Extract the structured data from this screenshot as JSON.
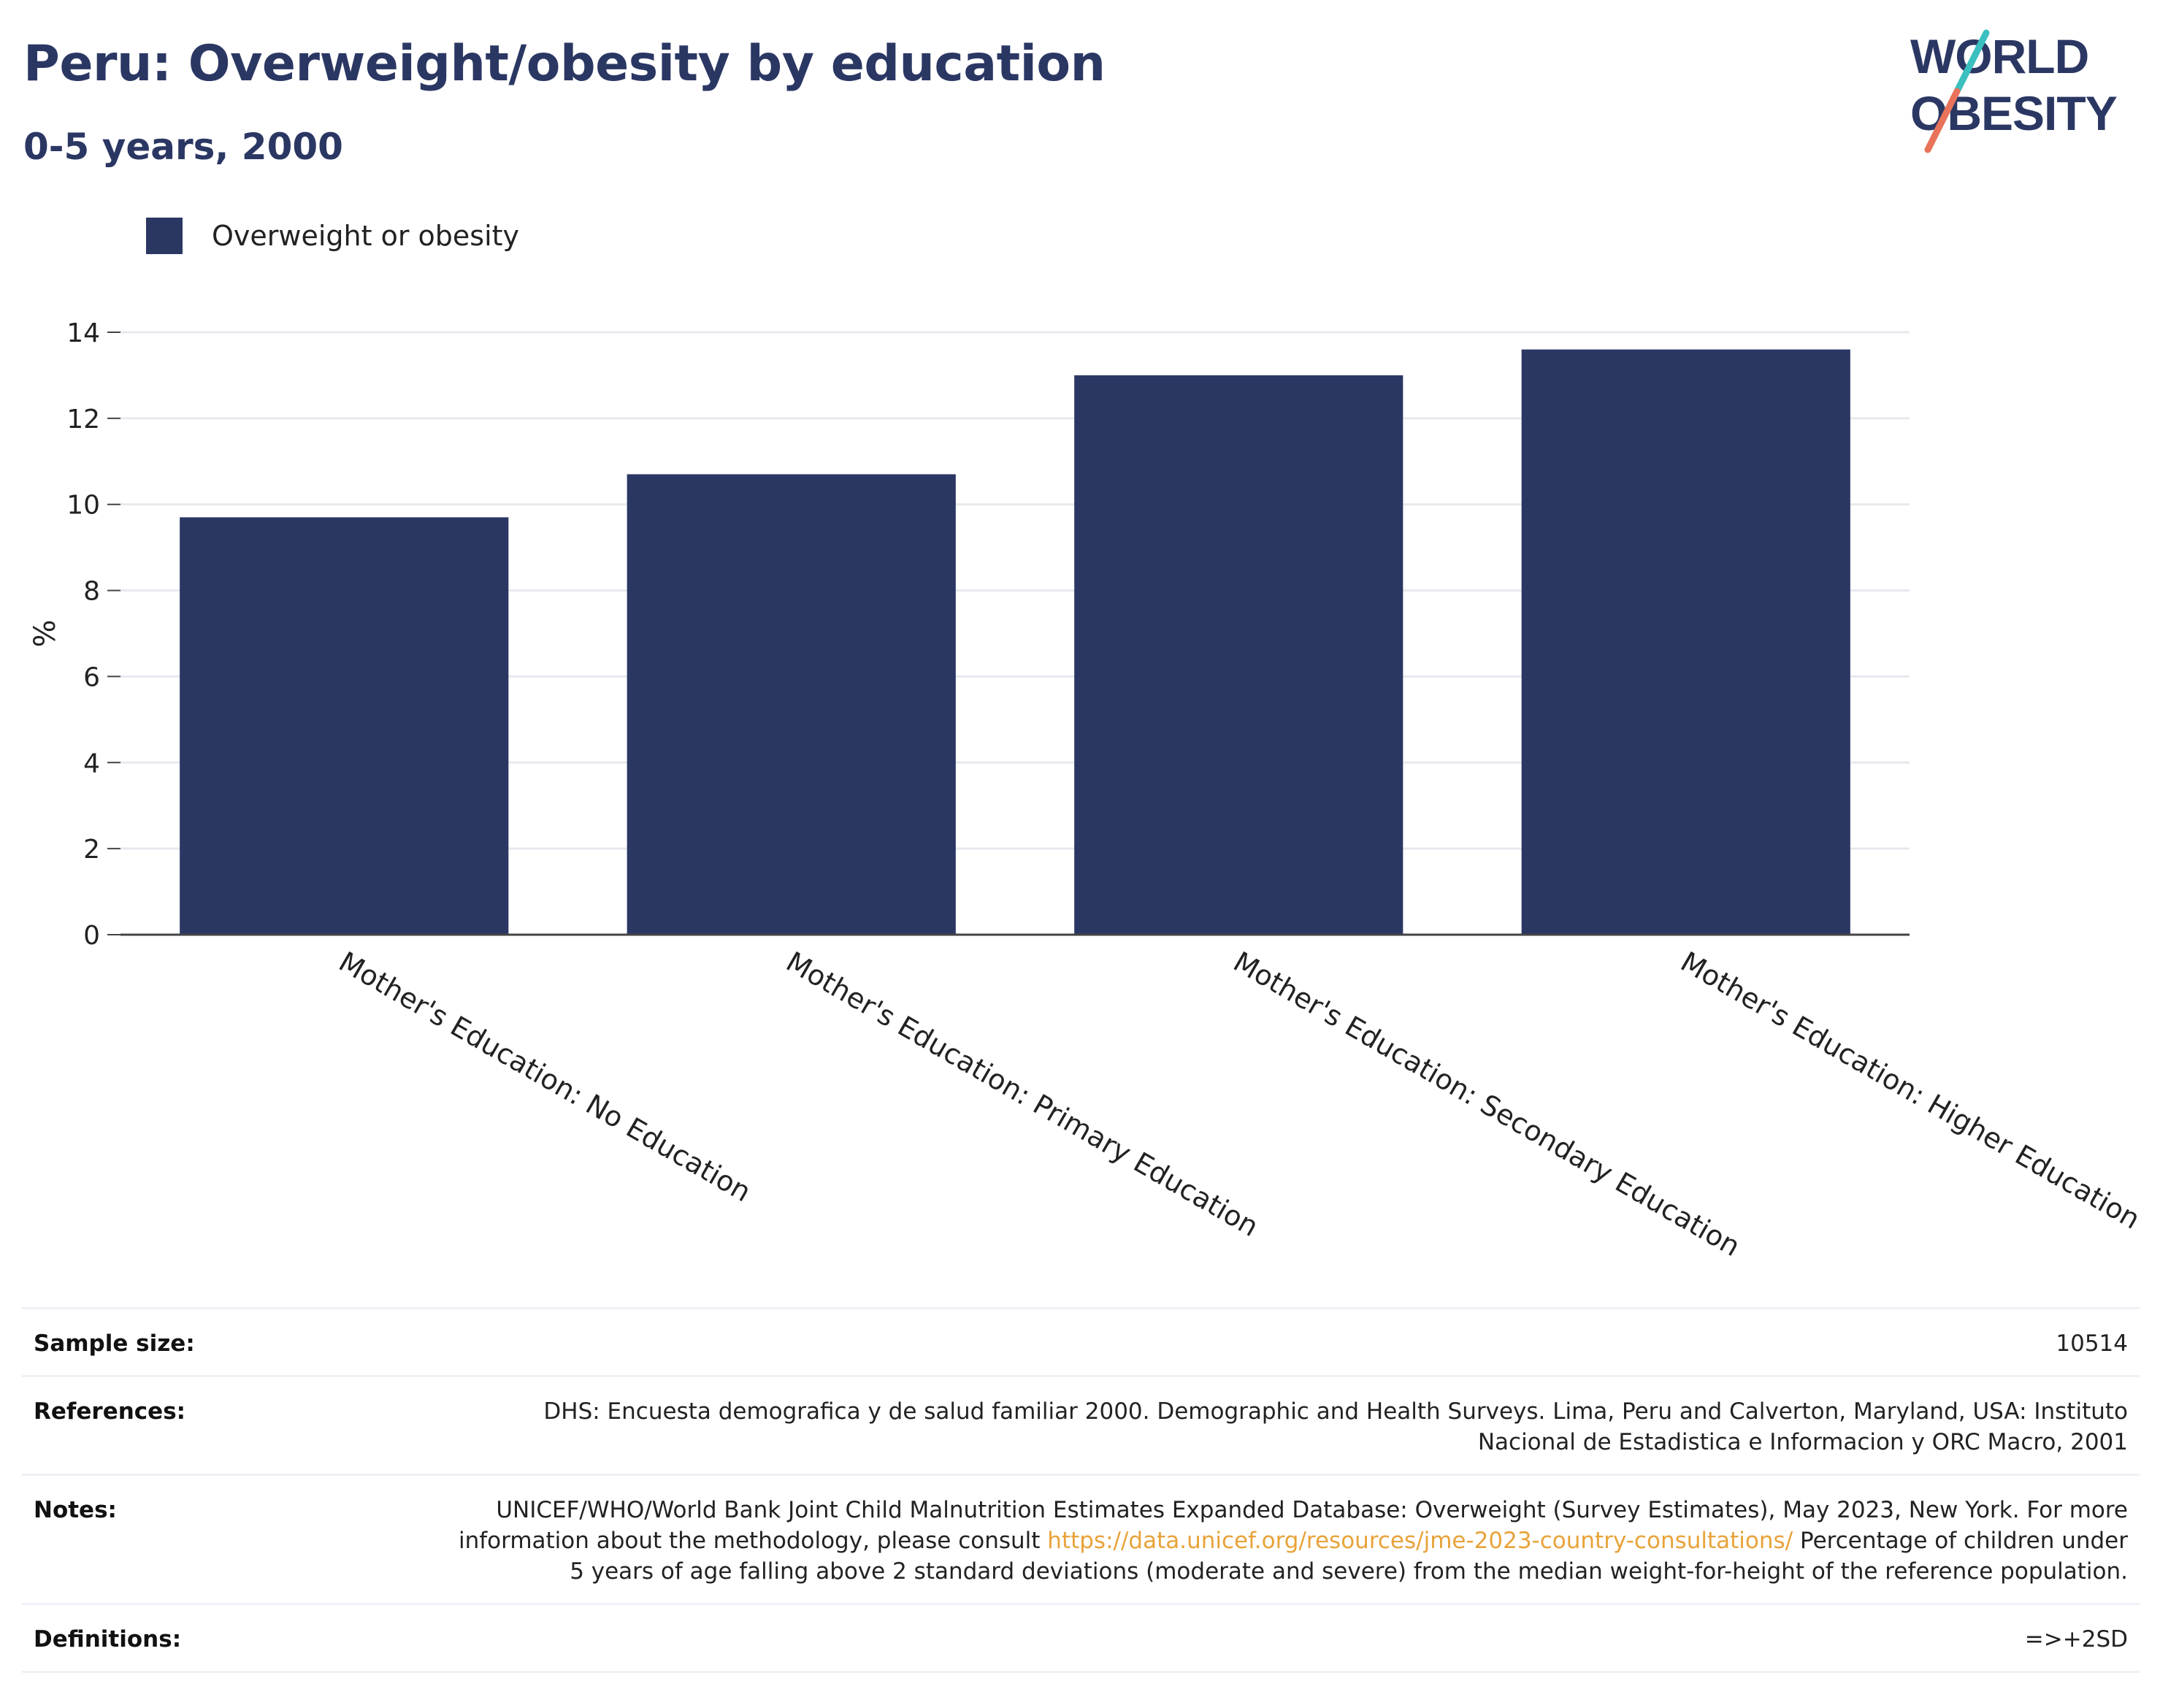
{
  "header": {
    "title": "Peru: Overweight/obesity by education",
    "subtitle": "0-5 years, 2000"
  },
  "logo": {
    "line1": "WORLD",
    "line2": "OBESITY"
  },
  "colors": {
    "bar": "#2b3763",
    "title": "#2b3763",
    "grid": "#e6e9ee",
    "link": "#e8a33a"
  },
  "chart_data": {
    "type": "bar",
    "categories": [
      "Mother's Education: No Education",
      "Mother's Education: Primary Education",
      "Mother's Education: Secondary Education",
      "Mother's Education: Higher Education"
    ],
    "series": [
      {
        "name": "Overweight or obesity",
        "values": [
          9.7,
          10.7,
          13.0,
          13.6
        ]
      }
    ],
    "ylabel": "%",
    "ylim": [
      0,
      14
    ],
    "yticks": [
      0,
      2,
      4,
      6,
      8,
      10,
      12,
      14
    ],
    "grid": true,
    "legend": "top-left"
  },
  "footer": {
    "sample_size_label": "Sample size:",
    "sample_size_value": "10514",
    "references_label": "References:",
    "references_value": "DHS: Encuesta demografica y de salud familiar 2000. Demographic and Health Surveys. Lima, Peru and Calverton, Maryland, USA: Instituto Nacional de Estadistica e Informacion y ORC Macro, 2001",
    "notes_label": "Notes:",
    "notes_text_1": "UNICEF/WHO/World Bank Joint Child Malnutrition Estimates Expanded Database: Overweight (Survey Estimates), May 2023, New York. For more information about the methodology, please consult ",
    "notes_link": "https://data.unicef.org/resources/jme-2023-country-consultations/",
    "notes_text_2": " Percentage of children under 5 years of age falling above 2 standard deviations (moderate and severe) from the median weight-for-height of the reference population.",
    "definitions_label": "Definitions:",
    "definitions_value": "=>+2SD"
  }
}
